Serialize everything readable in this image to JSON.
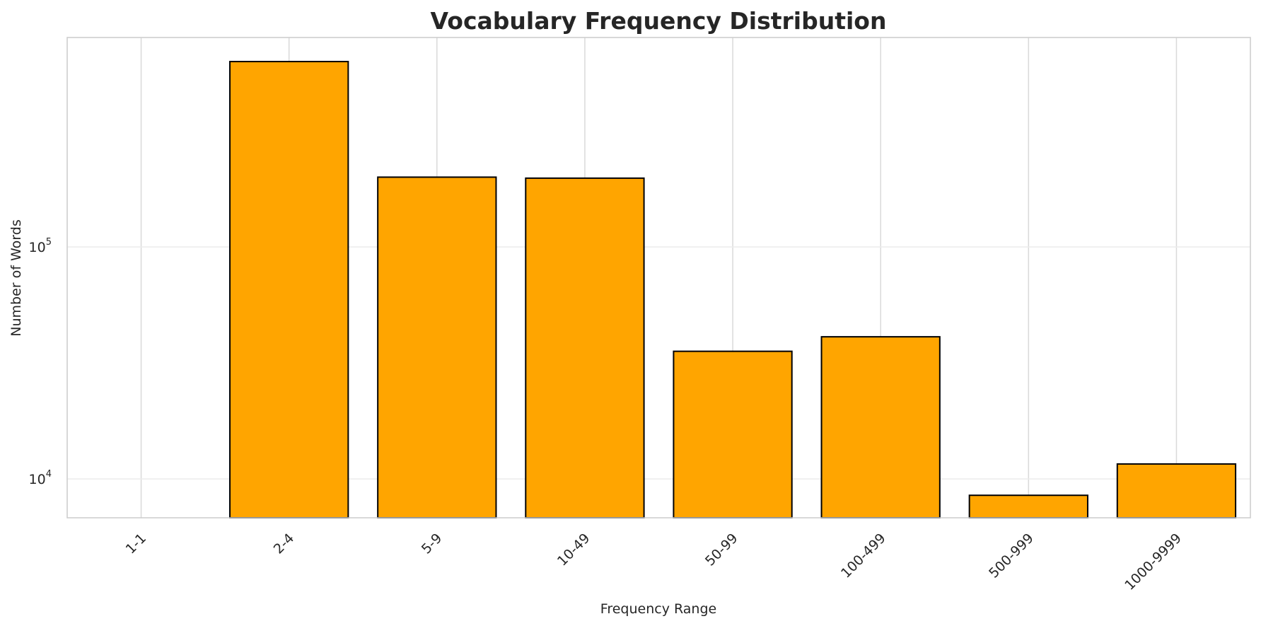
{
  "chart_data": {
    "type": "bar",
    "title": "Vocabulary Frequency Distribution",
    "xlabel": "Frequency Range",
    "ylabel": "Number of Words",
    "yscale": "log",
    "ylim": [
      6800,
      800000
    ],
    "yticks": [
      {
        "value": 10000,
        "base": "10",
        "exp": "4"
      },
      {
        "value": 100000,
        "base": "10",
        "exp": "5"
      }
    ],
    "categories": [
      "1-1",
      "2-4",
      "5-9",
      "10-49",
      "50-99",
      "100-499",
      "500-999",
      "1000-9999"
    ],
    "values": [
      null,
      630000,
      200000,
      198000,
      35500,
      41000,
      8500,
      11600
    ],
    "grid": true,
    "bar_color": "#FFA500",
    "edge_color": "#000000",
    "grid_color": "#d9d9d9",
    "spine_color": "#cccccc"
  }
}
